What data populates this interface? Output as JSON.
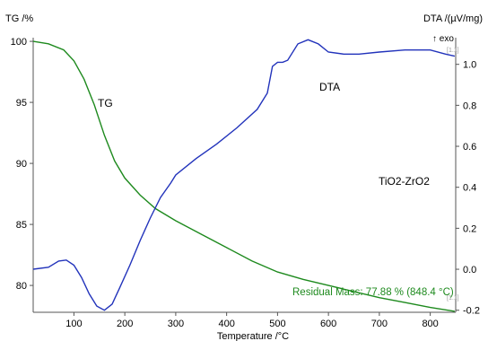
{
  "chart_data": {
    "type": "line",
    "title": "",
    "xlabel": "Temperature /°C",
    "ylabel_left": "TG /%",
    "ylabel_right": "DTA /(µV/mg)",
    "exo_label": "↑ exo",
    "x_ticks": [
      100,
      200,
      300,
      400,
      500,
      600,
      700,
      800
    ],
    "left_ticks": [
      80,
      85,
      90,
      95,
      100
    ],
    "right_ticks": [
      -0.2,
      0.0,
      0.2,
      0.4,
      0.6,
      0.8,
      1.0
    ],
    "xlim": [
      20,
      850
    ],
    "ylim_left": [
      77.8,
      100.3
    ],
    "ylim_right": [
      -0.21,
      1.13
    ],
    "axis_marks": [
      "[1.1]",
      "[1.1]"
    ],
    "annotations": {
      "sample": "TiO2-ZrO2",
      "residual": "Residual Mass: 77.88 % (848.4 °C)"
    },
    "series": [
      {
        "name": "TG",
        "axis": "left",
        "color": "#1e8a1e",
        "points": [
          [
            20,
            100
          ],
          [
            50,
            99.8
          ],
          [
            80,
            99.3
          ],
          [
            100,
            98.4
          ],
          [
            120,
            96.9
          ],
          [
            140,
            94.8
          ],
          [
            160,
            92.3
          ],
          [
            180,
            90.2
          ],
          [
            200,
            88.8
          ],
          [
            230,
            87.4
          ],
          [
            260,
            86.3
          ],
          [
            300,
            85.3
          ],
          [
            350,
            84.2
          ],
          [
            400,
            83.1
          ],
          [
            450,
            82.0
          ],
          [
            500,
            81.1
          ],
          [
            550,
            80.5
          ],
          [
            600,
            80.0
          ],
          [
            650,
            79.5
          ],
          [
            700,
            79.0
          ],
          [
            750,
            78.6
          ],
          [
            800,
            78.2
          ],
          [
            848,
            77.88
          ]
        ]
      },
      {
        "name": "DTA",
        "axis": "right",
        "color": "#2233bb",
        "points": [
          [
            20,
            0.0
          ],
          [
            50,
            0.01
          ],
          [
            70,
            0.04
          ],
          [
            85,
            0.045
          ],
          [
            100,
            0.02
          ],
          [
            115,
            -0.04
          ],
          [
            130,
            -0.12
          ],
          [
            145,
            -0.18
          ],
          [
            160,
            -0.2
          ],
          [
            175,
            -0.17
          ],
          [
            190,
            -0.09
          ],
          [
            210,
            0.02
          ],
          [
            230,
            0.14
          ],
          [
            250,
            0.25
          ],
          [
            270,
            0.35
          ],
          [
            290,
            0.42
          ],
          [
            300,
            0.46
          ],
          [
            340,
            0.54
          ],
          [
            380,
            0.61
          ],
          [
            420,
            0.69
          ],
          [
            460,
            0.78
          ],
          [
            480,
            0.86
          ],
          [
            490,
            0.99
          ],
          [
            500,
            1.01
          ],
          [
            510,
            1.01
          ],
          [
            520,
            1.02
          ],
          [
            540,
            1.1
          ],
          [
            560,
            1.12
          ],
          [
            580,
            1.1
          ],
          [
            600,
            1.06
          ],
          [
            630,
            1.05
          ],
          [
            660,
            1.05
          ],
          [
            700,
            1.06
          ],
          [
            750,
            1.07
          ],
          [
            800,
            1.07
          ],
          [
            830,
            1.05
          ],
          [
            848,
            1.04
          ]
        ]
      }
    ]
  }
}
